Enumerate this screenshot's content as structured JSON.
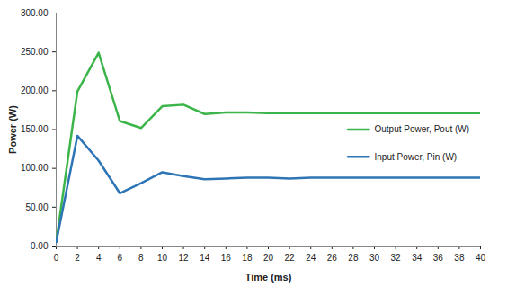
{
  "chart_data": {
    "type": "line",
    "x_label": "Time (ms)",
    "y_label": "Power (W)",
    "x": [
      0,
      2,
      4,
      6,
      8,
      10,
      12,
      14,
      16,
      18,
      20,
      22,
      24,
      26,
      28,
      30,
      32,
      34,
      36,
      38,
      40
    ],
    "series": [
      {
        "name": "Output Power, Pout (W)",
        "color": "#3bb54a",
        "marker": "none",
        "line_style": "solid",
        "values": [
          5,
          199,
          249,
          161,
          152,
          180,
          182,
          170,
          172,
          172,
          171,
          171,
          171,
          171,
          171,
          171,
          171,
          171,
          171,
          171,
          171
        ]
      },
      {
        "name": "Input Power, Pin (W)",
        "color": "#2e75b6",
        "marker": "none",
        "line_style": "solid",
        "values": [
          5,
          142,
          110,
          68,
          81,
          95,
          90,
          86,
          87,
          88,
          88,
          87,
          88,
          88,
          88,
          88,
          88,
          88,
          88,
          88,
          88
        ]
      }
    ],
    "xlim": [
      0,
      40
    ],
    "xticks": [
      0,
      2,
      4,
      6,
      8,
      10,
      12,
      14,
      16,
      18,
      20,
      22,
      24,
      26,
      28,
      30,
      32,
      34,
      36,
      38,
      40
    ],
    "ylim": [
      0,
      300
    ],
    "yticks": [
      {
        "value": 0,
        "label": "0.00"
      },
      {
        "value": 50,
        "label": "50.00"
      },
      {
        "value": 100,
        "label": "100.00"
      },
      {
        "value": 150,
        "label": "150.00"
      },
      {
        "value": 200,
        "label": "200.00"
      },
      {
        "value": 250,
        "label": "250.00"
      },
      {
        "value": 300,
        "label": "300.00"
      }
    ],
    "grid": false,
    "legend": "right"
  }
}
